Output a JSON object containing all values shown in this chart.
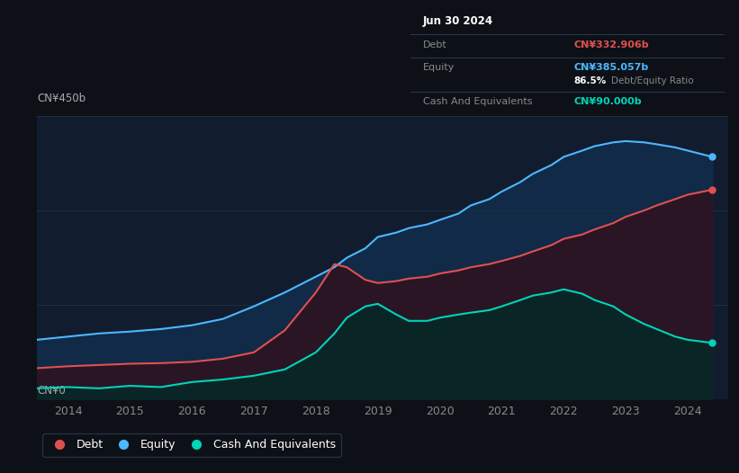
{
  "bg_color": "#0d1117",
  "plot_bg_color": "#111d2e",
  "grid_color": "#1e2d3d",
  "years": [
    2013.5,
    2014.0,
    2014.5,
    2015.0,
    2015.5,
    2016.0,
    2016.5,
    2017.0,
    2017.5,
    2018.0,
    2018.3,
    2018.5,
    2018.8,
    2019.0,
    2019.3,
    2019.5,
    2019.8,
    2020.0,
    2020.3,
    2020.5,
    2020.8,
    2021.0,
    2021.3,
    2021.5,
    2021.8,
    2022.0,
    2022.3,
    2022.5,
    2022.8,
    2023.0,
    2023.3,
    2023.5,
    2023.8,
    2024.0,
    2024.4
  ],
  "debt": [
    50,
    53,
    55,
    57,
    58,
    60,
    65,
    75,
    110,
    170,
    215,
    210,
    190,
    185,
    188,
    192,
    195,
    200,
    205,
    210,
    215,
    220,
    228,
    235,
    245,
    255,
    262,
    270,
    280,
    290,
    300,
    308,
    318,
    325,
    333
  ],
  "equity": [
    95,
    100,
    105,
    108,
    112,
    118,
    128,
    148,
    170,
    195,
    210,
    225,
    240,
    258,
    265,
    272,
    278,
    285,
    295,
    308,
    318,
    330,
    345,
    358,
    372,
    385,
    395,
    402,
    408,
    410,
    408,
    405,
    400,
    395,
    385
  ],
  "cash": [
    18,
    20,
    18,
    22,
    20,
    28,
    32,
    38,
    48,
    75,
    105,
    130,
    148,
    152,
    135,
    125,
    125,
    130,
    135,
    138,
    142,
    148,
    158,
    165,
    170,
    175,
    168,
    158,
    148,
    135,
    120,
    112,
    100,
    95,
    90
  ],
  "debt_color": "#e05050",
  "equity_color": "#4db8ff",
  "cash_color": "#00d4b8",
  "ylim": [
    0,
    450
  ],
  "xlim": [
    2013.5,
    2024.65
  ],
  "xtick_labels": [
    "2014",
    "2015",
    "2016",
    "2017",
    "2018",
    "2019",
    "2020",
    "2021",
    "2022",
    "2023",
    "2024"
  ],
  "xtick_vals": [
    2014,
    2015,
    2016,
    2017,
    2018,
    2019,
    2020,
    2021,
    2022,
    2023,
    2024
  ],
  "legend_items": [
    "Debt",
    "Equity",
    "Cash And Equivalents"
  ],
  "legend_colors": [
    "#e05050",
    "#4db8ff",
    "#00d4b8"
  ],
  "tooltip": {
    "title": "Jun 30 2024",
    "debt_label": "Debt",
    "debt_value": "CN¥332.906b",
    "equity_label": "Equity",
    "equity_value": "CN¥385.057b",
    "ratio_value": "86.5%",
    "ratio_label": "Debt/Equity Ratio",
    "cash_label": "Cash And Equivalents",
    "cash_value": "CN¥90.000b"
  }
}
